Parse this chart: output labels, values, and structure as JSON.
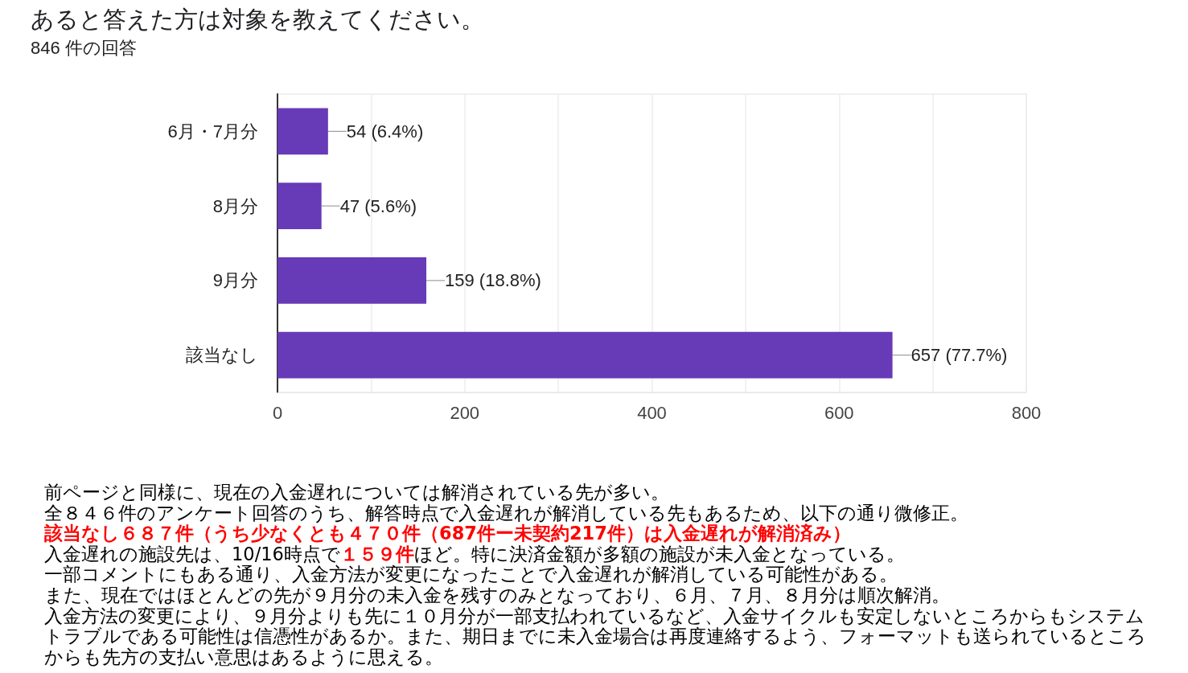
{
  "chart_data": {
    "type": "bar",
    "orientation": "horizontal",
    "title": "あると答えた方は対象を教えてください。",
    "subtitle": "846 件の回答",
    "categories": [
      "6月・7月分",
      "8月分",
      "9月分",
      "該当なし"
    ],
    "values": [
      54,
      47,
      159,
      657
    ],
    "value_labels": [
      "54 (6.4%)",
      "47 (5.6%)",
      "159 (18.8%)",
      "657 (77.7%)"
    ],
    "color": "#673ab7",
    "xlim": [
      0,
      800
    ],
    "xticks": [
      0,
      {
        "value": 100,
        "label": null
      },
      200,
      {
        "value": 300,
        "label": null
      },
      400,
      {
        "value": 500,
        "label": null
      },
      600,
      {
        "value": 700,
        "label": null
      },
      800
    ],
    "grid": "x",
    "annotations": [
      "前ページと同様に、現在の入金遅れについては解消されている先が多い。",
      "全８４６件のアンケート回答のうち、解答時点で入金遅れが解消している先もあるため、以下の通り微修正。",
      "該当なし６８７件（うち少なくとも４７０件（687件ー未契約217件）は入金遅れが解消済み）",
      "入金遅れの施設先は、10/16時点で",
      "１５９件",
      "ほど。特に決済金額が多額の施設が未入金となっている。",
      "一部コメントにもある通り、入金方法が変更になったことで入金遅れが解消している可能性がある。",
      "また、現在ではほとんどの先が９月分の未入金を残すのみとなっており、６月、７月、８月分は順次解消。",
      "入金方法の変更により、９月分よりも先に１０月分が一部支払われているなど、入金サイクルも安定しないところからもシステムトラブルである可能性は信憑性があるか。また、期日までに未入金場合は再度連絡するよう、フォーマットも送られているところからも先方の支払い意思はあるように思える。"
    ]
  }
}
